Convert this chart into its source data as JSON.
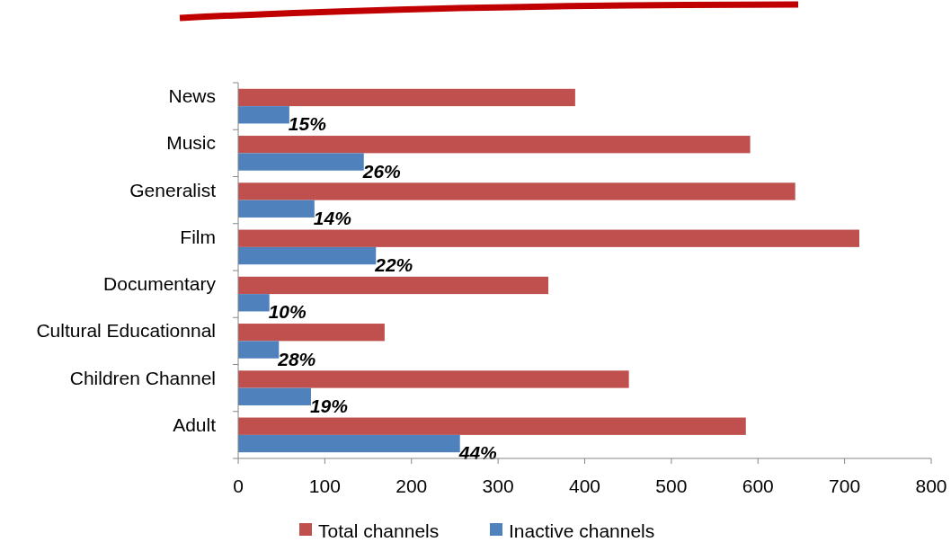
{
  "chart_data": {
    "type": "bar",
    "orientation": "horizontal",
    "categories": [
      "News",
      "Music",
      "Generalist",
      "Film ",
      "Documentary",
      "Cultural Educationnal",
      "Children Channel",
      "Adult"
    ],
    "series": [
      {
        "name": "Total channels",
        "color": "#c0504d",
        "values": [
          389,
          591,
          643,
          717,
          358,
          169,
          451,
          586
        ]
      },
      {
        "name": "Inactive channels",
        "color": "#4f81bd",
        "values": [
          59,
          145,
          88,
          159,
          36,
          47,
          84,
          256
        ]
      }
    ],
    "annotations": [
      {
        "text": "15%",
        "x": 59,
        "y": "News"
      },
      {
        "text": "26%",
        "x": 145,
        "y": "Music"
      },
      {
        "text": "14%",
        "x": 88,
        "y": "Generalist"
      },
      {
        "text": "22%",
        "x": 159,
        "y": "Film "
      },
      {
        "text": "10%",
        "x": 36,
        "y": "Documentary"
      },
      {
        "text": "28%",
        "x": 47,
        "y": "Cultural Educationnal"
      },
      {
        "text": "19%",
        "x": 84,
        "y": "Children Channel"
      },
      {
        "text": "44%",
        "x": 256,
        "y": "Adult"
      }
    ],
    "xlim": [
      0,
      800
    ],
    "xticks": [
      0,
      100,
      200,
      300,
      400,
      500,
      600,
      700,
      800
    ],
    "grid": false,
    "legend": "bottom"
  }
}
